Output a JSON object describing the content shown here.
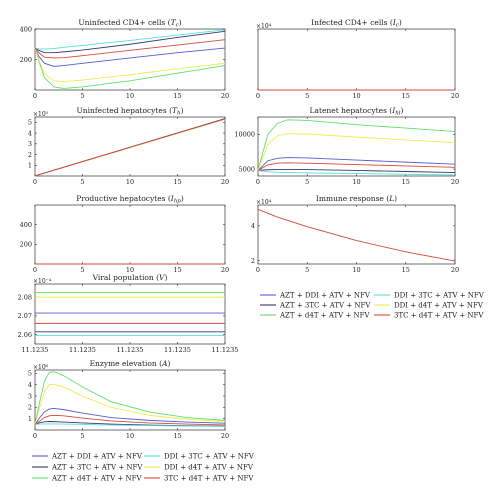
{
  "colors": {
    "AZT_DDI": "#5a5ad2",
    "AZT_3TC": "#3a3a70",
    "AZT_d4T": "#5fe06a",
    "DDI_3TC": "#58e0d8",
    "DDI_d4T": "#ecec52",
    "3TC_d4T": "#d44a3a"
  },
  "legend_labels": [
    "AZT + DDI + ATV + NFV",
    "AZT + 3TC + ATV + NFV",
    "AZT + d4T + ATV + NFV",
    "DDI + 3TC + ATV + NFV",
    "DDI + d4T + ATV + NFV",
    "3TC + d4T + ATV + NFV"
  ],
  "chart_data": [
    {
      "id": "tc",
      "type": "line",
      "title": "Uninfected CD4+ cells (T_c)",
      "xlim": [
        0,
        20
      ],
      "ylim": [
        0,
        400
      ],
      "xticks": [
        "0",
        "5",
        "10",
        "15",
        "20"
      ],
      "yticks": [
        "200",
        "400"
      ],
      "exponent": "",
      "series": [
        {
          "key": "AZT_DDI",
          "x": [
            0,
            0.4,
            1,
            2,
            3,
            5,
            10,
            15,
            20
          ],
          "y": [
            275,
            220,
            175,
            155,
            160,
            175,
            210,
            245,
            275
          ]
        },
        {
          "key": "AZT_3TC",
          "x": [
            0,
            0.4,
            1,
            2,
            3,
            5,
            10,
            15,
            20
          ],
          "y": [
            275,
            260,
            245,
            245,
            250,
            262,
            300,
            345,
            385
          ]
        },
        {
          "key": "AZT_d4T",
          "x": [
            0,
            0.4,
            1,
            2,
            3,
            5,
            10,
            15,
            20
          ],
          "y": [
            275,
            190,
            80,
            20,
            10,
            20,
            60,
            110,
            160
          ]
        },
        {
          "key": "DDI_3TC",
          "x": [
            0,
            0.4,
            1,
            2,
            3,
            5,
            10,
            15,
            20
          ],
          "y": [
            275,
            270,
            268,
            272,
            280,
            292,
            325,
            360,
            395
          ]
        },
        {
          "key": "DDI_d4T",
          "x": [
            0,
            0.4,
            1,
            2,
            3,
            5,
            10,
            15,
            20
          ],
          "y": [
            275,
            200,
            105,
            60,
            55,
            65,
            100,
            140,
            175
          ]
        },
        {
          "key": "3TC_d4T",
          "x": [
            0,
            0.4,
            1,
            2,
            3,
            5,
            10,
            15,
            20
          ],
          "y": [
            275,
            245,
            215,
            210,
            212,
            225,
            260,
            295,
            330
          ]
        }
      ]
    },
    {
      "id": "ic",
      "type": "line",
      "title": "Infected CD4+ cells (I_c)",
      "xlim": [
        0,
        20
      ],
      "ylim": [
        0,
        1
      ],
      "xticks": [
        "0",
        "5",
        "10",
        "15",
        "20"
      ],
      "yticks": [],
      "exponent": "×10⁴",
      "series": [
        {
          "key": "3TC_d4T",
          "x": [
            0,
            20
          ],
          "y": [
            0,
            0
          ]
        }
      ]
    },
    {
      "id": "th",
      "type": "line",
      "title": "Uninfected hepatocytes (T_h)",
      "xlim": [
        0,
        20
      ],
      "ylim": [
        0,
        5.5
      ],
      "xticks": [
        "0",
        "5",
        "10",
        "15",
        "20"
      ],
      "yticks": [
        "1",
        "2",
        "3",
        "4",
        "5"
      ],
      "exponent": "×10⁵",
      "series": [
        {
          "key": "AZT_3TC",
          "x": [
            0,
            20
          ],
          "y": [
            0.02,
            5.35
          ]
        },
        {
          "key": "DDI_d4T",
          "x": [
            0,
            20
          ],
          "y": [
            0.0,
            5.3
          ]
        },
        {
          "key": "3TC_d4T",
          "x": [
            0,
            20
          ],
          "y": [
            0.01,
            5.32
          ]
        }
      ]
    },
    {
      "id": "ih",
      "type": "line",
      "title": "Latenet hepatocytes (I_hl)",
      "xlim": [
        0,
        20
      ],
      "ylim": [
        4000,
        12500
      ],
      "xticks": [
        "0",
        "5",
        "10",
        "15",
        "20"
      ],
      "yticks": [
        "5000",
        "10000"
      ],
      "exponent": "",
      "series": [
        {
          "key": "AZT_DDI",
          "x": [
            0,
            1,
            2,
            3,
            5,
            10,
            15,
            20
          ],
          "y": [
            4800,
            6200,
            6550,
            6650,
            6600,
            6300,
            6000,
            5700
          ]
        },
        {
          "key": "AZT_3TC",
          "x": [
            0,
            1,
            2,
            3,
            5,
            10,
            15,
            20
          ],
          "y": [
            4800,
            4900,
            4950,
            4950,
            4930,
            4800,
            4650,
            4500
          ]
        },
        {
          "key": "AZT_d4T",
          "x": [
            0,
            1,
            2,
            3,
            5,
            10,
            15,
            20
          ],
          "y": [
            4800,
            10000,
            11600,
            12100,
            12000,
            11400,
            10900,
            10400
          ]
        },
        {
          "key": "DDI_3TC",
          "x": [
            0,
            1,
            2,
            3,
            5,
            10,
            15,
            20
          ],
          "y": [
            4800,
            4600,
            4550,
            4500,
            4450,
            4350,
            4250,
            4150
          ]
        },
        {
          "key": "DDI_d4T",
          "x": [
            0,
            1,
            2,
            3,
            5,
            10,
            15,
            20
          ],
          "y": [
            4800,
            8500,
            9800,
            10100,
            10050,
            9600,
            9200,
            8800
          ]
        },
        {
          "key": "3TC_d4T",
          "x": [
            0,
            1,
            2,
            3,
            5,
            10,
            15,
            20
          ],
          "y": [
            4800,
            5600,
            5850,
            5900,
            5850,
            5650,
            5450,
            5250
          ]
        }
      ]
    },
    {
      "id": "ihp",
      "type": "line",
      "title": "Productive hepatocytes (I_hp)",
      "xlim": [
        0,
        20
      ],
      "ylim": [
        0,
        600
      ],
      "xticks": [
        "0",
        "5",
        "10",
        "15",
        "20"
      ],
      "yticks": [
        "200",
        "400"
      ],
      "exponent": "",
      "series": [
        {
          "key": "3TC_d4T",
          "x": [
            0,
            20
          ],
          "y": [
            0,
            0
          ]
        }
      ]
    },
    {
      "id": "L",
      "type": "line",
      "title": "Immune response (L)",
      "xlim": [
        0,
        20
      ],
      "ylim": [
        1.8,
        5.2
      ],
      "xticks": [
        "0",
        "5",
        "10",
        "15",
        "20"
      ],
      "yticks": [
        "2",
        "4"
      ],
      "exponent": "×10⁴",
      "series": [
        {
          "key": "3TC_d4T",
          "x": [
            0,
            2,
            5,
            10,
            15,
            20
          ],
          "y": [
            4.95,
            4.5,
            3.95,
            3.15,
            2.5,
            1.97
          ]
        }
      ]
    },
    {
      "id": "V",
      "type": "line",
      "title": "Viral population (V)",
      "xlim": [
        0,
        4
      ],
      "ylim": [
        2.055,
        2.087
      ],
      "xticks": [
        "11.1235",
        "11.1235",
        "11.1235",
        "11.1235",
        "11.1235"
      ],
      "yticks": [
        "2.06",
        "2.07",
        "2.08"
      ],
      "exponent": "×10⁻⁴",
      "series": [
        {
          "key": "AZT_DDI",
          "x": [
            0,
            4
          ],
          "y": [
            2.0715,
            2.0715
          ]
        },
        {
          "key": "AZT_3TC",
          "x": [
            0,
            4
          ],
          "y": [
            2.0615,
            2.0615
          ]
        },
        {
          "key": "AZT_d4T",
          "x": [
            0,
            4
          ],
          "y": [
            2.0825,
            2.0825
          ]
        },
        {
          "key": "DDI_3TC",
          "x": [
            0,
            4
          ],
          "y": [
            2.0595,
            2.0595
          ]
        },
        {
          "key": "DDI_d4T",
          "x": [
            0,
            4
          ],
          "y": [
            2.08,
            2.08
          ]
        },
        {
          "key": "3TC_d4T",
          "x": [
            0,
            4
          ],
          "y": [
            2.066,
            2.066
          ]
        }
      ]
    },
    {
      "id": "A",
      "type": "line",
      "title": "Enzyme elevation (A)",
      "xlim": [
        0,
        20
      ],
      "ylim": [
        0,
        5.3
      ],
      "xticks": [
        "0",
        "5",
        "10",
        "15",
        "20"
      ],
      "yticks": [
        "1",
        "2",
        "3",
        "4",
        "5"
      ],
      "exponent": "×10⁶",
      "series": [
        {
          "key": "AZT_DDI",
          "x": [
            0,
            0.5,
            1,
            1.5,
            2,
            3,
            5,
            8,
            12,
            16,
            20
          ],
          "y": [
            0.5,
            1.1,
            1.6,
            1.85,
            1.9,
            1.8,
            1.5,
            1.1,
            0.85,
            0.7,
            0.6
          ]
        },
        {
          "key": "AZT_3TC",
          "x": [
            0,
            0.5,
            1,
            1.5,
            2,
            3,
            5,
            8,
            12,
            16,
            20
          ],
          "y": [
            0.5,
            0.65,
            0.72,
            0.75,
            0.74,
            0.7,
            0.62,
            0.52,
            0.44,
            0.38,
            0.33
          ]
        },
        {
          "key": "AZT_d4T",
          "x": [
            0,
            0.5,
            1,
            1.5,
            2,
            3,
            5,
            8,
            12,
            16,
            20
          ],
          "y": [
            0.5,
            2.5,
            4.3,
            5.1,
            5.15,
            4.8,
            3.8,
            2.5,
            1.6,
            1.1,
            0.85
          ]
        },
        {
          "key": "DDI_3TC",
          "x": [
            0,
            0.5,
            1,
            1.5,
            2,
            3,
            5,
            8,
            12,
            16,
            20
          ],
          "y": [
            0.5,
            0.52,
            0.54,
            0.54,
            0.54,
            0.52,
            0.49,
            0.44,
            0.39,
            0.35,
            0.31
          ]
        },
        {
          "key": "DDI_d4T",
          "x": [
            0,
            0.5,
            1,
            1.5,
            2,
            3,
            5,
            8,
            12,
            16,
            20
          ],
          "y": [
            0.5,
            2.0,
            3.4,
            4.0,
            4.05,
            3.8,
            3.0,
            2.0,
            1.3,
            0.95,
            0.75
          ]
        },
        {
          "key": "3TC_d4T",
          "x": [
            0,
            0.5,
            1,
            1.5,
            2,
            3,
            5,
            8,
            12,
            16,
            20
          ],
          "y": [
            0.5,
            0.8,
            1.1,
            1.25,
            1.3,
            1.25,
            1.05,
            0.8,
            0.62,
            0.52,
            0.45
          ]
        }
      ]
    }
  ]
}
